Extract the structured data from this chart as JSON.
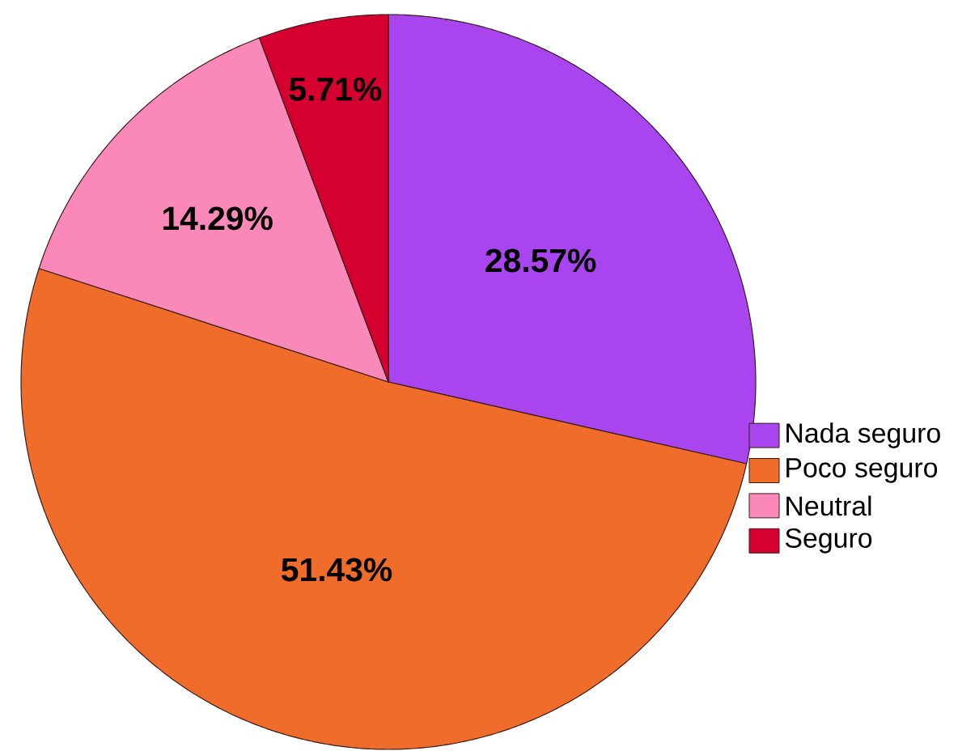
{
  "chart_data": {
    "type": "pie",
    "categories": [
      "Nada seguro",
      "Poco seguro",
      "Neutral",
      "Seguro"
    ],
    "values": [
      28.57,
      51.43,
      14.29,
      5.71
    ],
    "colors": [
      "#a845ee",
      "#f06c2b",
      "#fa88b8",
      "#d5002f"
    ],
    "value_labels": [
      "28.57%",
      "51.43%",
      "14.29%",
      "5.71%"
    ],
    "legend": "bottom right"
  }
}
